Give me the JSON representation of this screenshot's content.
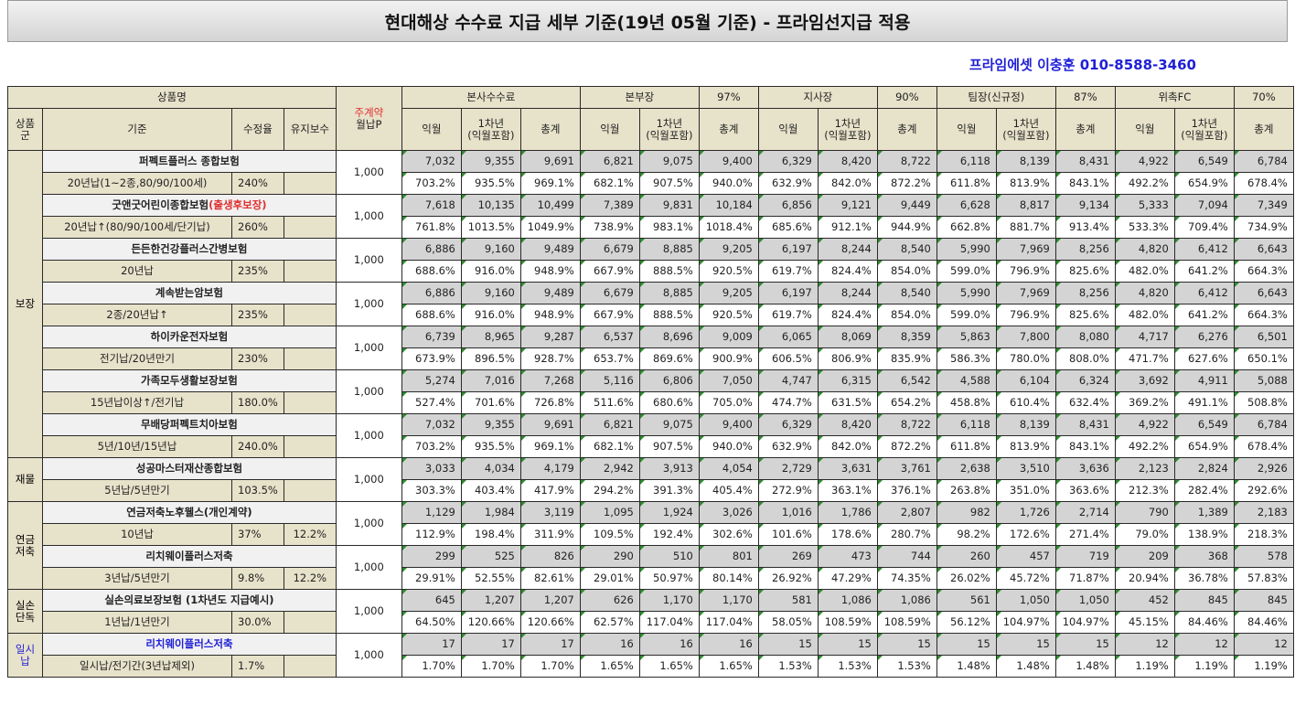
{
  "title": "현대해상 수수료 지급 세부 기준(19년 05월 기준) - 프라임선지급 적용",
  "contact": "프라임에셋 이충훈 010-8588-3460",
  "header": {
    "product_name": "상품명",
    "main_contract_1": "주계약",
    "main_contract_2": "월납P",
    "product_group": "상품군",
    "criteria": "기준",
    "correction_rate": "수정율",
    "maintenance_fee": "유지보수",
    "sections": [
      {
        "name": "본사수수료",
        "pct": ""
      },
      {
        "name": "본부장",
        "pct": "97%"
      },
      {
        "name": "지사장",
        "pct": "90%"
      },
      {
        "name": "팀장(신규정)",
        "pct": "87%"
      },
      {
        "name": "위촉FC",
        "pct": "70%"
      }
    ],
    "col_month": "익월",
    "col_year_1": "1차년",
    "col_year_2": "(익월포함)",
    "col_total": "총계"
  },
  "groups": [
    {
      "name": "보장",
      "products": [
        {
          "name": "퍼펙트플러스 종합보험",
          "name_note": "",
          "criteria": "20년납(1~2종,80/90/100세)",
          "rate": "240%",
          "maint": "",
          "premium": "1,000",
          "values": [
            "7,032",
            "9,355",
            "9,691",
            "6,821",
            "9,075",
            "9,400",
            "6,329",
            "8,420",
            "8,722",
            "6,118",
            "8,139",
            "8,431",
            "4,922",
            "6,549",
            "6,784"
          ],
          "pcts": [
            "703.2%",
            "935.5%",
            "969.1%",
            "682.1%",
            "907.5%",
            "940.0%",
            "632.9%",
            "842.0%",
            "872.2%",
            "611.8%",
            "813.9%",
            "843.1%",
            "492.2%",
            "654.9%",
            "678.4%"
          ]
        },
        {
          "name": "굿앤굿어린이종합보험",
          "name_note": "(출생후보장)",
          "criteria": "20년납↑(80/90/100세/단기납)",
          "rate": "260%",
          "maint": "",
          "premium": "1,000",
          "values": [
            "7,618",
            "10,135",
            "10,499",
            "7,389",
            "9,831",
            "10,184",
            "6,856",
            "9,121",
            "9,449",
            "6,628",
            "8,817",
            "9,134",
            "5,333",
            "7,094",
            "7,349"
          ],
          "pcts": [
            "761.8%",
            "1013.5%",
            "1049.9%",
            "738.9%",
            "983.1%",
            "1018.4%",
            "685.6%",
            "912.1%",
            "944.9%",
            "662.8%",
            "881.7%",
            "913.4%",
            "533.3%",
            "709.4%",
            "734.9%"
          ]
        },
        {
          "name": "든든한건강플러스간병보험",
          "name_note": "",
          "criteria": "20년납",
          "rate": "235%",
          "maint": "",
          "premium": "1,000",
          "values": [
            "6,886",
            "9,160",
            "9,489",
            "6,679",
            "8,885",
            "9,205",
            "6,197",
            "8,244",
            "8,540",
            "5,990",
            "7,969",
            "8,256",
            "4,820",
            "6,412",
            "6,643"
          ],
          "pcts": [
            "688.6%",
            "916.0%",
            "948.9%",
            "667.9%",
            "888.5%",
            "920.5%",
            "619.7%",
            "824.4%",
            "854.0%",
            "599.0%",
            "796.9%",
            "825.6%",
            "482.0%",
            "641.2%",
            "664.3%"
          ]
        },
        {
          "name": "계속받는암보험",
          "name_note": "",
          "criteria": "2종/20년납↑",
          "rate": "235%",
          "maint": "",
          "premium": "1,000",
          "values": [
            "6,886",
            "9,160",
            "9,489",
            "6,679",
            "8,885",
            "9,205",
            "6,197",
            "8,244",
            "8,540",
            "5,990",
            "7,969",
            "8,256",
            "4,820",
            "6,412",
            "6,643"
          ],
          "pcts": [
            "688.6%",
            "916.0%",
            "948.9%",
            "667.9%",
            "888.5%",
            "920.5%",
            "619.7%",
            "824.4%",
            "854.0%",
            "599.0%",
            "796.9%",
            "825.6%",
            "482.0%",
            "641.2%",
            "664.3%"
          ]
        },
        {
          "name": "하이카운전자보험",
          "name_note": "",
          "criteria": "전기납/20년만기",
          "rate": "230%",
          "maint": "",
          "premium": "1,000",
          "values": [
            "6,739",
            "8,965",
            "9,287",
            "6,537",
            "8,696",
            "9,009",
            "6,065",
            "8,069",
            "8,359",
            "5,863",
            "7,800",
            "8,080",
            "4,717",
            "6,276",
            "6,501"
          ],
          "pcts": [
            "673.9%",
            "896.5%",
            "928.7%",
            "653.7%",
            "869.6%",
            "900.9%",
            "606.5%",
            "806.9%",
            "835.9%",
            "586.3%",
            "780.0%",
            "808.0%",
            "471.7%",
            "627.6%",
            "650.1%"
          ]
        },
        {
          "name": "가족모두생활보장보험",
          "name_note": "",
          "criteria": "15년납이상↑/전기납",
          "rate": "180.0%",
          "maint": "",
          "premium": "1,000",
          "values": [
            "5,274",
            "7,016",
            "7,268",
            "5,116",
            "6,806",
            "7,050",
            "4,747",
            "6,315",
            "6,542",
            "4,588",
            "6,104",
            "6,324",
            "3,692",
            "4,911",
            "5,088"
          ],
          "pcts": [
            "527.4%",
            "701.6%",
            "726.8%",
            "511.6%",
            "680.6%",
            "705.0%",
            "474.7%",
            "631.5%",
            "654.2%",
            "458.8%",
            "610.4%",
            "632.4%",
            "369.2%",
            "491.1%",
            "508.8%"
          ]
        },
        {
          "name": "무배당퍼펙트치아보험",
          "name_note": "",
          "criteria": "5년/10년/15년납",
          "rate": "240.0%",
          "maint": "",
          "premium": "1,000",
          "values": [
            "7,032",
            "9,355",
            "9,691",
            "6,821",
            "9,075",
            "9,400",
            "6,329",
            "8,420",
            "8,722",
            "6,118",
            "8,139",
            "8,431",
            "4,922",
            "6,549",
            "6,784"
          ],
          "pcts": [
            "703.2%",
            "935.5%",
            "969.1%",
            "682.1%",
            "907.5%",
            "940.0%",
            "632.9%",
            "842.0%",
            "872.2%",
            "611.8%",
            "813.9%",
            "843.1%",
            "492.2%",
            "654.9%",
            "678.4%"
          ]
        }
      ]
    },
    {
      "name": "재물",
      "products": [
        {
          "name": "성공마스터재산종합보험",
          "name_note": "",
          "criteria": "5년납/5년만기",
          "rate": "103.5%",
          "maint": "",
          "premium": "1,000",
          "values": [
            "3,033",
            "4,034",
            "4,179",
            "2,942",
            "3,913",
            "4,054",
            "2,729",
            "3,631",
            "3,761",
            "2,638",
            "3,510",
            "3,636",
            "2,123",
            "2,824",
            "2,926"
          ],
          "pcts": [
            "303.3%",
            "403.4%",
            "417.9%",
            "294.2%",
            "391.3%",
            "405.4%",
            "272.9%",
            "363.1%",
            "376.1%",
            "263.8%",
            "351.0%",
            "363.6%",
            "212.3%",
            "282.4%",
            "292.6%"
          ]
        }
      ]
    },
    {
      "name": "연금 저축",
      "products": [
        {
          "name": "연금저축노후웰스(개인계약)",
          "name_note": "",
          "criteria": "10년납",
          "rate": "37%",
          "maint": "12.2%",
          "premium": "1,000",
          "values": [
            "1,129",
            "1,984",
            "3,119",
            "1,095",
            "1,924",
            "3,026",
            "1,016",
            "1,786",
            "2,807",
            "982",
            "1,726",
            "2,714",
            "790",
            "1,389",
            "2,183"
          ],
          "pcts": [
            "112.9%",
            "198.4%",
            "311.9%",
            "109.5%",
            "192.4%",
            "302.6%",
            "101.6%",
            "178.6%",
            "280.7%",
            "98.2%",
            "172.6%",
            "271.4%",
            "79.0%",
            "138.9%",
            "218.3%"
          ]
        },
        {
          "name": "리치웨이플러스저축",
          "name_note": "",
          "criteria": "3년납/5년만기",
          "rate": "9.8%",
          "maint": "12.2%",
          "premium": "1,000",
          "values": [
            "299",
            "525",
            "826",
            "290",
            "510",
            "801",
            "269",
            "473",
            "744",
            "260",
            "457",
            "719",
            "209",
            "368",
            "578"
          ],
          "pcts": [
            "29.91%",
            "52.55%",
            "82.61%",
            "29.01%",
            "50.97%",
            "80.14%",
            "26.92%",
            "47.29%",
            "74.35%",
            "26.02%",
            "45.72%",
            "71.87%",
            "20.94%",
            "36.78%",
            "57.83%"
          ]
        }
      ]
    },
    {
      "name": "실손 단독",
      "products": [
        {
          "name": "실손의료보장보험 (1차년도 지급예시)",
          "name_note": "",
          "criteria": "1년납/1년만기",
          "rate": "30.0%",
          "maint": "",
          "premium": "1,000",
          "values": [
            "645",
            "1,207",
            "1,207",
            "626",
            "1,170",
            "1,170",
            "581",
            "1,086",
            "1,086",
            "561",
            "1,050",
            "1,050",
            "452",
            "845",
            "845"
          ],
          "pcts": [
            "64.50%",
            "120.66%",
            "120.66%",
            "62.57%",
            "117.04%",
            "117.04%",
            "58.05%",
            "108.59%",
            "108.59%",
            "56.12%",
            "104.97%",
            "104.97%",
            "45.15%",
            "84.46%",
            "84.46%"
          ]
        }
      ]
    },
    {
      "name": "일시납",
      "blue": true,
      "products": [
        {
          "name": "리치웨이플러스저축",
          "name_note": "",
          "criteria": "일시납/전기간(3년납제외)",
          "rate": "1.7%",
          "maint": "",
          "premium": "1,000",
          "values": [
            "17",
            "17",
            "17",
            "16",
            "16",
            "16",
            "15",
            "15",
            "15",
            "15",
            "15",
            "15",
            "12",
            "12",
            "12"
          ],
          "pcts": [
            "1.70%",
            "1.70%",
            "1.70%",
            "1.65%",
            "1.65%",
            "1.65%",
            "1.53%",
            "1.53%",
            "1.53%",
            "1.48%",
            "1.48%",
            "1.48%",
            "1.19%",
            "1.19%",
            "1.19%"
          ]
        }
      ]
    }
  ],
  "colors": {
    "header_bg": "#e7e2ca",
    "value_bg": "#d4d4d4",
    "product_bg": "#f1f1f1",
    "accent_red": "#e03030",
    "accent_blue": "#1f1fd6"
  }
}
